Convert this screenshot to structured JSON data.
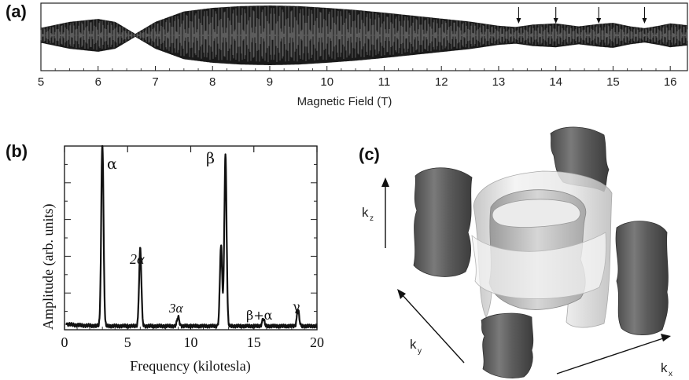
{
  "figure": {
    "panel_a": {
      "label": "(a)",
      "xlabel": "Magnetic Field (T)",
      "xticks": [
        "5",
        "6",
        "7",
        "8",
        "9",
        "10",
        "11",
        "12",
        "13",
        "14",
        "15",
        "16"
      ],
      "arrow_fields": [
        13.35,
        14.0,
        14.75,
        15.55
      ]
    },
    "panel_b": {
      "label": "(b)",
      "xlabel": "Frequency (kilotesla)",
      "ylabel": "Amplitude (arb. units)",
      "xticks": [
        "0",
        "5",
        "10",
        "15",
        "20"
      ],
      "peak_labels": {
        "alpha": "α",
        "two_alpha": "2α",
        "three_alpha": "3α",
        "beta": "β",
        "beta_plus_alpha": "β+α",
        "gamma": "γ"
      }
    },
    "panel_c": {
      "label": "(c)",
      "axes": [
        {
          "main": "k",
          "sub": "z"
        },
        {
          "main": "k",
          "sub": "y"
        },
        {
          "main": "k",
          "sub": "x"
        }
      ]
    }
  },
  "chart_data": [
    {
      "type": "line",
      "title": "",
      "xlabel": "Magnetic Field (T)",
      "ylabel": "",
      "xlim": [
        5,
        16.3
      ],
      "description_of_envelope": null,
      "envelope_x": [
        5,
        5.5,
        6.0,
        6.3,
        6.65,
        7.0,
        7.5,
        8.0,
        8.5,
        9.0,
        9.5,
        10.0,
        10.5,
        11.0,
        11.5,
        12.0,
        12.5,
        13.0,
        13.3,
        13.6,
        14.0,
        14.4,
        14.75,
        15.0,
        15.3,
        15.55,
        15.8,
        16.0,
        16.3
      ],
      "envelope_amplitude": [
        0.25,
        0.45,
        0.55,
        0.45,
        0.05,
        0.45,
        0.8,
        0.92,
        0.98,
        1.0,
        0.98,
        0.92,
        0.85,
        0.76,
        0.66,
        0.56,
        0.46,
        0.32,
        0.28,
        0.36,
        0.4,
        0.3,
        0.38,
        0.42,
        0.3,
        0.24,
        0.32,
        0.4,
        0.34
      ]
    },
    {
      "type": "line",
      "title": "",
      "xlabel": "Frequency (kilotesla)",
      "ylabel": "Amplitude (arb. units)",
      "xlim": [
        0,
        20
      ],
      "ylim": [
        0,
        1
      ],
      "peaks": [
        {
          "label": "α",
          "x": 3.0,
          "y": 1.0
        },
        {
          "label": "2α",
          "x": 6.0,
          "y": 0.42
        },
        {
          "label": "3α",
          "x": 9.0,
          "y": 0.05
        },
        {
          "label": "",
          "x": 12.4,
          "y": 0.44
        },
        {
          "label": "β",
          "x": 12.75,
          "y": 0.93
        },
        {
          "label": "β+α",
          "x": 15.75,
          "y": 0.04
        },
        {
          "label": "γ",
          "x": 18.5,
          "y": 0.09
        }
      ]
    }
  ]
}
